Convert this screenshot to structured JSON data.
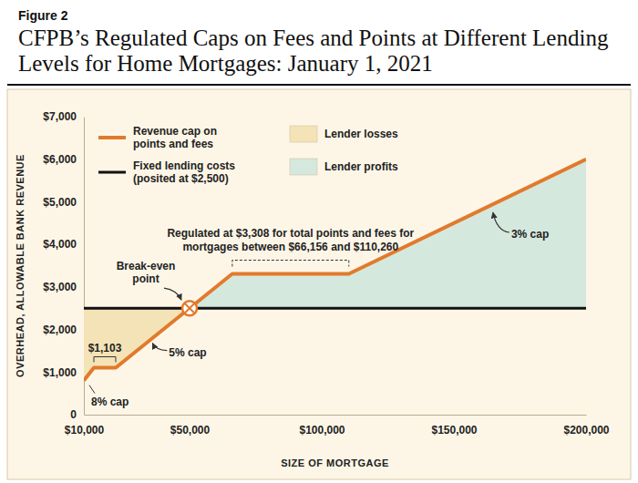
{
  "chart_data": {
    "type": "line",
    "figure_label": "Figure 2",
    "title": "CFPB’s Regulated Caps on Fees and Points at Different Lending Levels for Home Mortgages: January 1, 2021",
    "x_label": "SIZE OF MORTGAGE",
    "y_label": "OVERHEAD, ALLOWABLE BANK REVENUE",
    "xlim": [
      10000,
      200000
    ],
    "ylim": [
      0,
      7000
    ],
    "xticks": [
      {
        "value": 10000,
        "label": "$10,000"
      },
      {
        "value": 50000,
        "label": "$50,000"
      },
      {
        "value": 100000,
        "label": "$100,000"
      },
      {
        "value": 150000,
        "label": "$150,000"
      },
      {
        "value": 200000,
        "label": "$200,000"
      }
    ],
    "yticks": [
      0,
      {
        "value": 1000,
        "label": "$1,000"
      },
      {
        "value": 2000,
        "label": "$2,000"
      },
      {
        "value": 3000,
        "label": "$3,000"
      },
      {
        "value": 4000,
        "label": "$4,000"
      },
      {
        "value": 5000,
        "label": "$5,000"
      },
      {
        "value": 6000,
        "label": "$6,000"
      },
      {
        "value": 7000,
        "label": "$7,000"
      }
    ],
    "grid": false,
    "legend": "top-left",
    "series": [
      {
        "name": "Revenue cap on points and fees",
        "color": "#e17a2c",
        "x": [
          10000,
          13788,
          22062,
          66156,
          110260,
          200000
        ],
        "values": [
          800,
          1103,
          1103,
          3308,
          3308,
          6000
        ]
      },
      {
        "name": "Fixed lending costs (posited at $2,500)",
        "color": "#111111",
        "x": [
          10000,
          200000
        ],
        "values": [
          2500,
          2500
        ]
      }
    ],
    "areas": [
      {
        "name": "Lender losses",
        "color": "#f4e3b6"
      },
      {
        "name": "Lender profits",
        "color": "#d5e8de"
      }
    ],
    "break_even": {
      "label": "Break-even point",
      "x": 50000,
      "y": 2500
    },
    "annotations": {
      "cap_8": "8% cap",
      "cap_5": "5% cap",
      "cap_3": "3% cap",
      "plateau_low": "$1,103",
      "plateau_high": "Regulated at $3,308 for total points and fees for mortgages between $66,156 and $110,260"
    }
  }
}
